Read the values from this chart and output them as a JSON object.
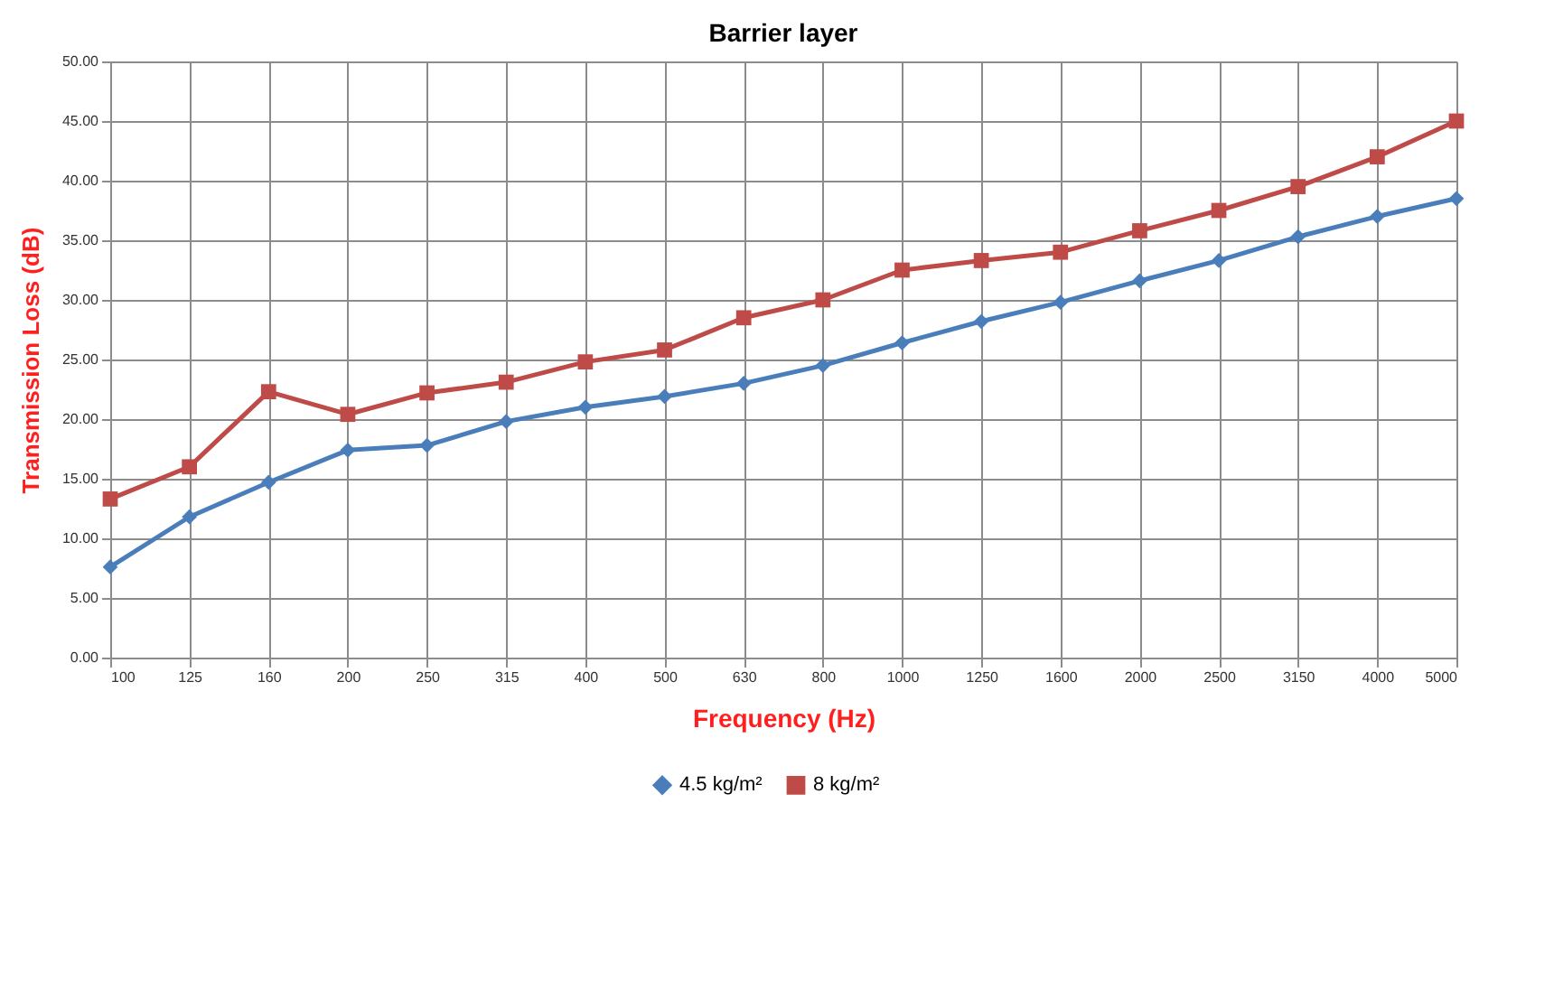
{
  "chart_data": {
    "type": "line",
    "title": "Barrier layer",
    "xlabel": "Frequency (Hz)",
    "ylabel": "Transmission  Loss (dB)",
    "categories": [
      "100",
      "125",
      "160",
      "200",
      "250",
      "315",
      "400",
      "500",
      "630",
      "800",
      "1000",
      "1250",
      "1600",
      "2000",
      "2500",
      "3150",
      "4000",
      "5000"
    ],
    "series": [
      {
        "name": "4.5 kg/m²",
        "color": "#4a7ebb",
        "marker": "diamond",
        "values": [
          7.6,
          11.8,
          14.7,
          17.4,
          17.8,
          19.8,
          21.0,
          21.9,
          23.0,
          24.5,
          26.4,
          28.2,
          29.8,
          31.6,
          33.3,
          35.3,
          37.0,
          38.5
        ]
      },
      {
        "name": "8 kg/m²",
        "color": "#be4b48",
        "marker": "square",
        "values": [
          13.3,
          16.0,
          22.3,
          20.4,
          22.2,
          23.1,
          24.8,
          25.8,
          28.5,
          30.0,
          32.5,
          33.3,
          34.0,
          35.8,
          37.5,
          39.5,
          42.0,
          45.0
        ]
      }
    ],
    "ylim": [
      0,
      50
    ],
    "yticks": [
      {
        "value": 0,
        "label": "0.00"
      },
      {
        "value": 5,
        "label": "5.00"
      },
      {
        "value": 10,
        "label": "10.00"
      },
      {
        "value": 15,
        "label": "15.00"
      },
      {
        "value": 20,
        "label": "20.00"
      },
      {
        "value": 25,
        "label": "25.00"
      },
      {
        "value": 30,
        "label": "30.00"
      },
      {
        "value": 35,
        "label": "35.00"
      },
      {
        "value": 40,
        "label": "40.00"
      },
      {
        "value": 45,
        "label": "45.00"
      },
      {
        "value": 50,
        "label": "50.00"
      }
    ],
    "grid": true,
    "legend": "bottom",
    "line_style": "solid"
  }
}
